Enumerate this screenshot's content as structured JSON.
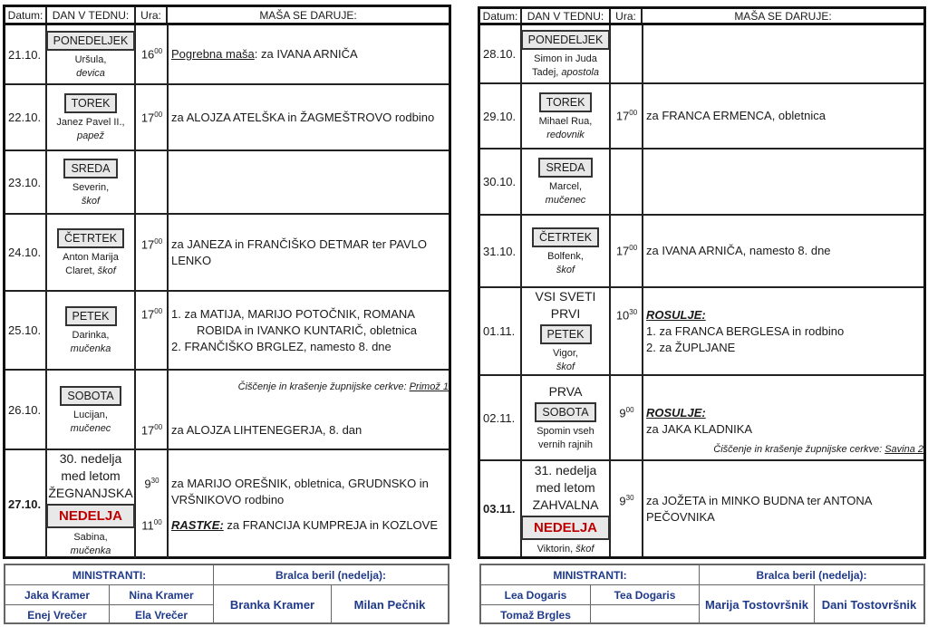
{
  "headers": {
    "date": "Datum:",
    "day": "DAN V TEDNU:",
    "time": "Ura:",
    "mass": "MAŠA SE DARUJE:"
  },
  "colors": {
    "sunday": "#c00000",
    "footer_text": "#1f3a8a"
  },
  "weeks": [
    {
      "rows": [
        {
          "date": "21.10.",
          "day": "PONEDELJEK",
          "saint": [
            [
              {
                "t": "Uršula,"
              }
            ],
            [
              {
                "t": "devica",
                "s": "i"
              }
            ]
          ],
          "entries": [
            {
              "h": "16",
              "m": "00",
              "lines": [
                [
                  {
                    "t": "Pogrebna maša",
                    "s": "u"
                  },
                  {
                    "t": ": za IVANA ARNIČA"
                  }
                ]
              ]
            }
          ]
        },
        {
          "date": "22.10.",
          "day": "TOREK",
          "saint": [
            [
              {
                "t": "Janez Pavel II.,"
              }
            ],
            [
              {
                "t": "papež",
                "s": "i"
              }
            ]
          ],
          "entries": [
            {
              "h": "17",
              "m": "00",
              "lines": [
                [
                  {
                    "t": "za ALOJZA ATELŠKA in ŽAGMEŠTROVO rodbino"
                  }
                ]
              ]
            }
          ]
        },
        {
          "date": "23.10.",
          "day": "SREDA",
          "saint": [
            [
              {
                "t": "Severin,"
              }
            ],
            [
              {
                "t": "škof",
                "s": "i"
              }
            ]
          ],
          "entries": []
        },
        {
          "date": "24.10.",
          "day": "ČETRTEK",
          "saint": [
            [
              {
                "t": "Anton Marija"
              }
            ],
            [
              {
                "t": "Claret, "
              },
              {
                "t": "škof",
                "s": "i"
              }
            ]
          ],
          "entries": [
            {
              "h": "17",
              "m": "00",
              "lines": [
                [
                  {
                    "t": "za JANEZA in FRANČIŠKO DETMAR ter PAVLO LENKO"
                  }
                ]
              ]
            }
          ]
        },
        {
          "date": "25.10.",
          "day": "PETEK",
          "saint": [
            [
              {
                "t": "Darinka,"
              }
            ],
            [
              {
                "t": "mučenka",
                "s": "i"
              }
            ]
          ],
          "entries": [
            {
              "h": "17",
              "m": "00",
              "lines": [
                [
                  {
                    "t": "1. za MATIJA, MARIJO POTOČNIK, ROMANA"
                  }
                ],
                [
                  {
                    "t": "ROBIDA in IVANKO KUNTARIČ, obletnica",
                    "s": "ind"
                  }
                ],
                [
                  {
                    "t": "2. FRANČIŠKO BRGLEZ, namesto 8. dne"
                  }
                ]
              ]
            }
          ]
        },
        {
          "date": "26.10.",
          "day": "SOBOTA",
          "saint": [
            [
              {
                "t": "Lucijan,"
              }
            ],
            [
              {
                "t": "mučenec",
                "s": "i"
              }
            ]
          ],
          "note_top": [
            {
              "t": "Čiščenje in krašenje župnijske cerkve: "
            },
            {
              "t": "Primož 1",
              "s": "u"
            }
          ],
          "entries": [
            {
              "h": "17",
              "m": "00",
              "lines": [
                [
                  {
                    "t": "za ALOJZA LIHTENEGERJA, 8. dan"
                  }
                ]
              ]
            }
          ]
        },
        {
          "date": "27.10.",
          "bold": true,
          "pre": [
            "30. nedelja",
            "med letom",
            "ŽEGNANJSKA"
          ],
          "day": "NEDELJA",
          "red": true,
          "saint": [
            [
              {
                "t": "Sabina,"
              }
            ],
            [
              {
                "t": "mučenka",
                "s": "i"
              }
            ]
          ],
          "entries": [
            {
              "h": "9",
              "m": "30",
              "lines": [
                [
                  {
                    "t": "za MARIJO OREŠNIK, obletnica, GRUDNSKO in VRŠNIKOVO rodbino"
                  }
                ]
              ]
            },
            {
              "h": "11",
              "m": "00",
              "lines": [
                [
                  {
                    "t": "RASTKE:",
                    "s": "bi"
                  },
                  {
                    "t": "  za FRANCIJA KUMPREJA in KOZLOVE"
                  }
                ]
              ]
            }
          ]
        }
      ],
      "footer": {
        "ministranti_label": "MINISTRANTI:",
        "readers_label": "Bralca beril (nedelja):",
        "ministranti": [
          "Jaka Kramer",
          "Nina Kramer",
          "Enej Vrečer",
          "Ela Vrečer"
        ],
        "readers": [
          "Branka Kramer",
          "Milan Pečnik"
        ]
      }
    },
    {
      "rows": [
        {
          "date": "28.10.",
          "day": "PONEDELJEK",
          "saint": [
            [
              {
                "t": "Simon in Juda"
              }
            ],
            [
              {
                "t": "Tadej, "
              },
              {
                "t": "apostola",
                "s": "i"
              }
            ]
          ],
          "entries": []
        },
        {
          "date": "29.10.",
          "day": "TOREK",
          "saint": [
            [
              {
                "t": "Mihael Rua,"
              }
            ],
            [
              {
                "t": "redovnik",
                "s": "i"
              }
            ]
          ],
          "entries": [
            {
              "h": "17",
              "m": "00",
              "lines": [
                [
                  {
                    "t": "za FRANCA ERMENCA, obletnica"
                  }
                ]
              ]
            }
          ]
        },
        {
          "date": "30.10.",
          "day": "SREDA",
          "saint": [
            [
              {
                "t": "Marcel,"
              }
            ],
            [
              {
                "t": "mučenec",
                "s": "i"
              }
            ]
          ],
          "entries": []
        },
        {
          "date": "31.10.",
          "day": "ČETRTEK",
          "saint": [
            [
              {
                "t": "Bolfenk,"
              }
            ],
            [
              {
                "t": "škof",
                "s": "i"
              }
            ]
          ],
          "entries": [
            {
              "h": "17",
              "m": "00",
              "lines": [
                [
                  {
                    "t": "za IVANA ARNIČA, namesto 8. dne"
                  }
                ]
              ]
            }
          ]
        },
        {
          "date": "01.11.",
          "pre": [
            "VSI SVETI",
            "PRVI"
          ],
          "day": "PETEK",
          "saint": [
            [
              {
                "t": "Vigor,"
              }
            ],
            [
              {
                "t": "škof",
                "s": "i"
              }
            ]
          ],
          "entries": [
            {
              "h": "10",
              "m": "30",
              "lines": [
                [
                  {
                    "t": "ROSULJE:",
                    "s": "bi"
                  }
                ],
                [
                  {
                    "t": "1. za FRANCA BERGLESA in rodbino"
                  }
                ],
                [
                  {
                    "t": "2. za ŽUPLJANE"
                  }
                ]
              ]
            }
          ]
        },
        {
          "date": "02.11.",
          "pre": [
            "PRVA"
          ],
          "day": "SOBOTA",
          "saint": [
            [
              {
                "t": "Spomin vseh"
              }
            ],
            [
              {
                "t": "vernih rajnih"
              }
            ]
          ],
          "entries": [
            {
              "h": "9",
              "m": "00",
              "lines": [
                [
                  {
                    "t": "ROSULJE:",
                    "s": "bi"
                  }
                ],
                [
                  {
                    "t": "za JAKA KLADNIKA"
                  }
                ]
              ]
            }
          ],
          "note_bottom": [
            {
              "t": "Čiščenje in krašenje župnijske cerkve: "
            },
            {
              "t": "Savina 2",
              "s": "u"
            }
          ]
        },
        {
          "date": "03.11.",
          "bold": true,
          "pre": [
            "31. nedelja",
            "med letom",
            "ZAHVALNA"
          ],
          "day": "NEDELJA",
          "red": true,
          "saint": [
            [
              {
                "t": "Viktorin, "
              },
              {
                "t": "škof",
                "s": "i"
              }
            ]
          ],
          "entries": [
            {
              "h": "9",
              "m": "30",
              "lines": [
                [
                  {
                    "t": "za JOŽETA in MINKO BUDNA ter ANTONA PEČOVNIKA"
                  }
                ]
              ]
            }
          ]
        }
      ],
      "footer": {
        "ministranti_label": "MINISTRANTI:",
        "readers_label": "Bralca beril (nedelja):",
        "ministranti": [
          "Lea Dogaris",
          "Tea Dogaris",
          "Tomaž Brgles",
          ""
        ],
        "readers": [
          "Marija Tostovršnik",
          "Dani Tostovršnik"
        ]
      }
    }
  ]
}
